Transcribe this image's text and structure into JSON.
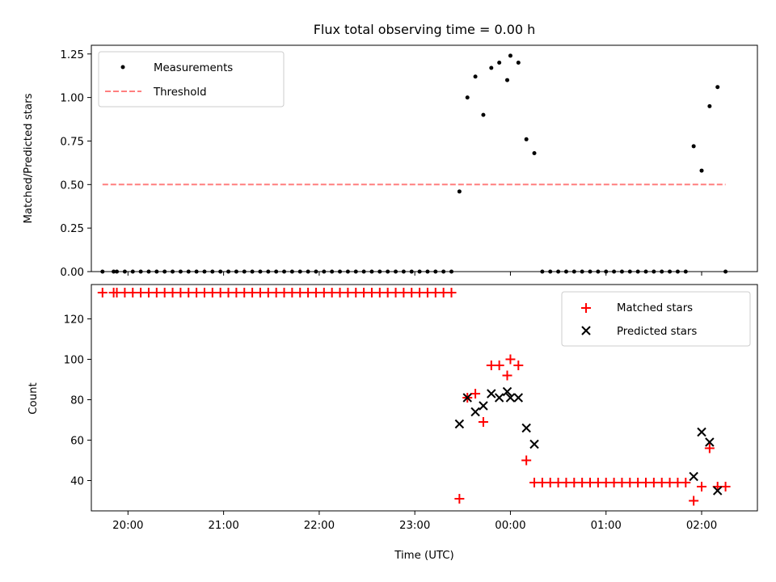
{
  "chart_data": [
    {
      "type": "scatter",
      "title": "Flux total observing time = 0.00 h",
      "ylabel": "Matched/Predicted stars",
      "xlabel": "",
      "xlim": [
        "19:37",
        "02:35"
      ],
      "ylim": [
        0,
        1.3
      ],
      "yticks": [
        "0.00",
        "0.25",
        "0.50",
        "0.75",
        "1.00",
        "1.25"
      ],
      "ytick_values": [
        0,
        0.25,
        0.5,
        0.75,
        1.0,
        1.25
      ],
      "legend_position": "upper left",
      "series": [
        {
          "name": "Measurements",
          "kind": "scatter",
          "marker": "dot",
          "color": "#000000",
          "points": [
            [
              "19:44",
              0
            ],
            [
              "19:51",
              0
            ],
            [
              "19:53",
              0
            ],
            [
              "19:58",
              0
            ],
            [
              "20:03",
              0
            ],
            [
              "20:08",
              0
            ],
            [
              "20:13",
              0
            ],
            [
              "20:18",
              0
            ],
            [
              "20:23",
              0
            ],
            [
              "20:28",
              0
            ],
            [
              "20:33",
              0
            ],
            [
              "20:38",
              0
            ],
            [
              "20:43",
              0
            ],
            [
              "20:48",
              0
            ],
            [
              "20:53",
              0
            ],
            [
              "20:58",
              0
            ],
            [
              "21:03",
              0
            ],
            [
              "21:08",
              0
            ],
            [
              "21:13",
              0
            ],
            [
              "21:18",
              0
            ],
            [
              "21:23",
              0
            ],
            [
              "21:28",
              0
            ],
            [
              "21:33",
              0
            ],
            [
              "21:38",
              0
            ],
            [
              "21:43",
              0
            ],
            [
              "21:48",
              0
            ],
            [
              "21:53",
              0
            ],
            [
              "21:58",
              0
            ],
            [
              "22:03",
              0
            ],
            [
              "22:08",
              0
            ],
            [
              "22:13",
              0
            ],
            [
              "22:18",
              0
            ],
            [
              "22:23",
              0
            ],
            [
              "22:28",
              0
            ],
            [
              "22:33",
              0
            ],
            [
              "22:38",
              0
            ],
            [
              "22:43",
              0
            ],
            [
              "22:48",
              0
            ],
            [
              "22:53",
              0
            ],
            [
              "22:58",
              0
            ],
            [
              "23:03",
              0
            ],
            [
              "23:08",
              0
            ],
            [
              "23:13",
              0
            ],
            [
              "23:18",
              0
            ],
            [
              "23:23",
              0
            ],
            [
              "23:28",
              0.46
            ],
            [
              "23:33",
              1.0
            ],
            [
              "23:38",
              1.12
            ],
            [
              "23:43",
              0.9
            ],
            [
              "23:48",
              1.17
            ],
            [
              "23:53",
              1.2
            ],
            [
              "23:58",
              1.1
            ],
            [
              "00:00",
              1.24
            ],
            [
              "00:05",
              1.2
            ],
            [
              "00:10",
              0.76
            ],
            [
              "00:15",
              0.68
            ],
            [
              "00:20",
              0
            ],
            [
              "00:25",
              0
            ],
            [
              "00:30",
              0
            ],
            [
              "00:35",
              0
            ],
            [
              "00:40",
              0
            ],
            [
              "00:45",
              0
            ],
            [
              "00:50",
              0
            ],
            [
              "00:55",
              0
            ],
            [
              "01:00",
              0
            ],
            [
              "01:05",
              0
            ],
            [
              "01:10",
              0
            ],
            [
              "01:15",
              0
            ],
            [
              "01:20",
              0
            ],
            [
              "01:25",
              0
            ],
            [
              "01:30",
              0
            ],
            [
              "01:35",
              0
            ],
            [
              "01:40",
              0
            ],
            [
              "01:45",
              0
            ],
            [
              "01:50",
              0
            ],
            [
              "01:55",
              0.72
            ],
            [
              "02:00",
              0.58
            ],
            [
              "02:05",
              0.95
            ],
            [
              "02:10",
              1.06
            ],
            [
              "02:15",
              0
            ]
          ]
        },
        {
          "name": "Threshold",
          "kind": "line",
          "style": "dashed",
          "color": "#ff7f7f",
          "points": [
            [
              "19:44",
              0.5
            ],
            [
              "02:15",
              0.5
            ]
          ]
        }
      ]
    },
    {
      "type": "scatter",
      "title": "",
      "ylabel": "Count",
      "xlabel": "Time (UTC)",
      "xlim": [
        "19:37",
        "02:35"
      ],
      "ylim": [
        25,
        137
      ],
      "yticks": [
        "40",
        "60",
        "80",
        "100",
        "120"
      ],
      "ytick_values": [
        40,
        60,
        80,
        100,
        120
      ],
      "xticks": [
        "20:00",
        "21:00",
        "22:00",
        "23:00",
        "00:00",
        "01:00",
        "02:00"
      ],
      "legend_position": "upper right",
      "series": [
        {
          "name": "Matched stars",
          "kind": "scatter",
          "marker": "plus",
          "color": "#ff0000",
          "points": [
            [
              "19:44",
              133
            ],
            [
              "19:51",
              133
            ],
            [
              "19:53",
              133
            ],
            [
              "19:58",
              133
            ],
            [
              "20:03",
              133
            ],
            [
              "20:08",
              133
            ],
            [
              "20:13",
              133
            ],
            [
              "20:18",
              133
            ],
            [
              "20:23",
              133
            ],
            [
              "20:28",
              133
            ],
            [
              "20:33",
              133
            ],
            [
              "20:38",
              133
            ],
            [
              "20:43",
              133
            ],
            [
              "20:48",
              133
            ],
            [
              "20:53",
              133
            ],
            [
              "20:58",
              133
            ],
            [
              "21:03",
              133
            ],
            [
              "21:08",
              133
            ],
            [
              "21:13",
              133
            ],
            [
              "21:18",
              133
            ],
            [
              "21:23",
              133
            ],
            [
              "21:28",
              133
            ],
            [
              "21:33",
              133
            ],
            [
              "21:38",
              133
            ],
            [
              "21:43",
              133
            ],
            [
              "21:48",
              133
            ],
            [
              "21:53",
              133
            ],
            [
              "21:58",
              133
            ],
            [
              "22:03",
              133
            ],
            [
              "22:08",
              133
            ],
            [
              "22:13",
              133
            ],
            [
              "22:18",
              133
            ],
            [
              "22:23",
              133
            ],
            [
              "22:28",
              133
            ],
            [
              "22:33",
              133
            ],
            [
              "22:38",
              133
            ],
            [
              "22:43",
              133
            ],
            [
              "22:48",
              133
            ],
            [
              "22:53",
              133
            ],
            [
              "22:58",
              133
            ],
            [
              "23:03",
              133
            ],
            [
              "23:08",
              133
            ],
            [
              "23:13",
              133
            ],
            [
              "23:18",
              133
            ],
            [
              "23:23",
              133
            ],
            [
              "23:28",
              31
            ],
            [
              "23:33",
              81
            ],
            [
              "23:38",
              83
            ],
            [
              "23:43",
              69
            ],
            [
              "23:48",
              97
            ],
            [
              "23:53",
              97
            ],
            [
              "23:58",
              92
            ],
            [
              "00:00",
              100
            ],
            [
              "00:05",
              97
            ],
            [
              "00:10",
              50
            ],
            [
              "00:15",
              39
            ],
            [
              "00:20",
              39
            ],
            [
              "00:25",
              39
            ],
            [
              "00:30",
              39
            ],
            [
              "00:35",
              39
            ],
            [
              "00:40",
              39
            ],
            [
              "00:45",
              39
            ],
            [
              "00:50",
              39
            ],
            [
              "00:55",
              39
            ],
            [
              "01:00",
              39
            ],
            [
              "01:05",
              39
            ],
            [
              "01:10",
              39
            ],
            [
              "01:15",
              39
            ],
            [
              "01:20",
              39
            ],
            [
              "01:25",
              39
            ],
            [
              "01:30",
              39
            ],
            [
              "01:35",
              39
            ],
            [
              "01:40",
              39
            ],
            [
              "01:45",
              39
            ],
            [
              "01:50",
              39
            ],
            [
              "01:55",
              30
            ],
            [
              "02:00",
              37
            ],
            [
              "02:05",
              56
            ],
            [
              "02:10",
              37
            ],
            [
              "02:15",
              37
            ]
          ]
        },
        {
          "name": "Predicted stars",
          "kind": "scatter",
          "marker": "x",
          "color": "#000000",
          "points": [
            [
              "23:28",
              68
            ],
            [
              "23:33",
              81
            ],
            [
              "23:38",
              74
            ],
            [
              "23:43",
              77
            ],
            [
              "23:48",
              83
            ],
            [
              "23:53",
              81
            ],
            [
              "23:58",
              84
            ],
            [
              "00:00",
              81
            ],
            [
              "00:05",
              81
            ],
            [
              "00:10",
              66
            ],
            [
              "00:15",
              58
            ],
            [
              "01:55",
              42
            ],
            [
              "02:00",
              64
            ],
            [
              "02:05",
              59
            ],
            [
              "02:10",
              35
            ]
          ]
        }
      ]
    }
  ]
}
